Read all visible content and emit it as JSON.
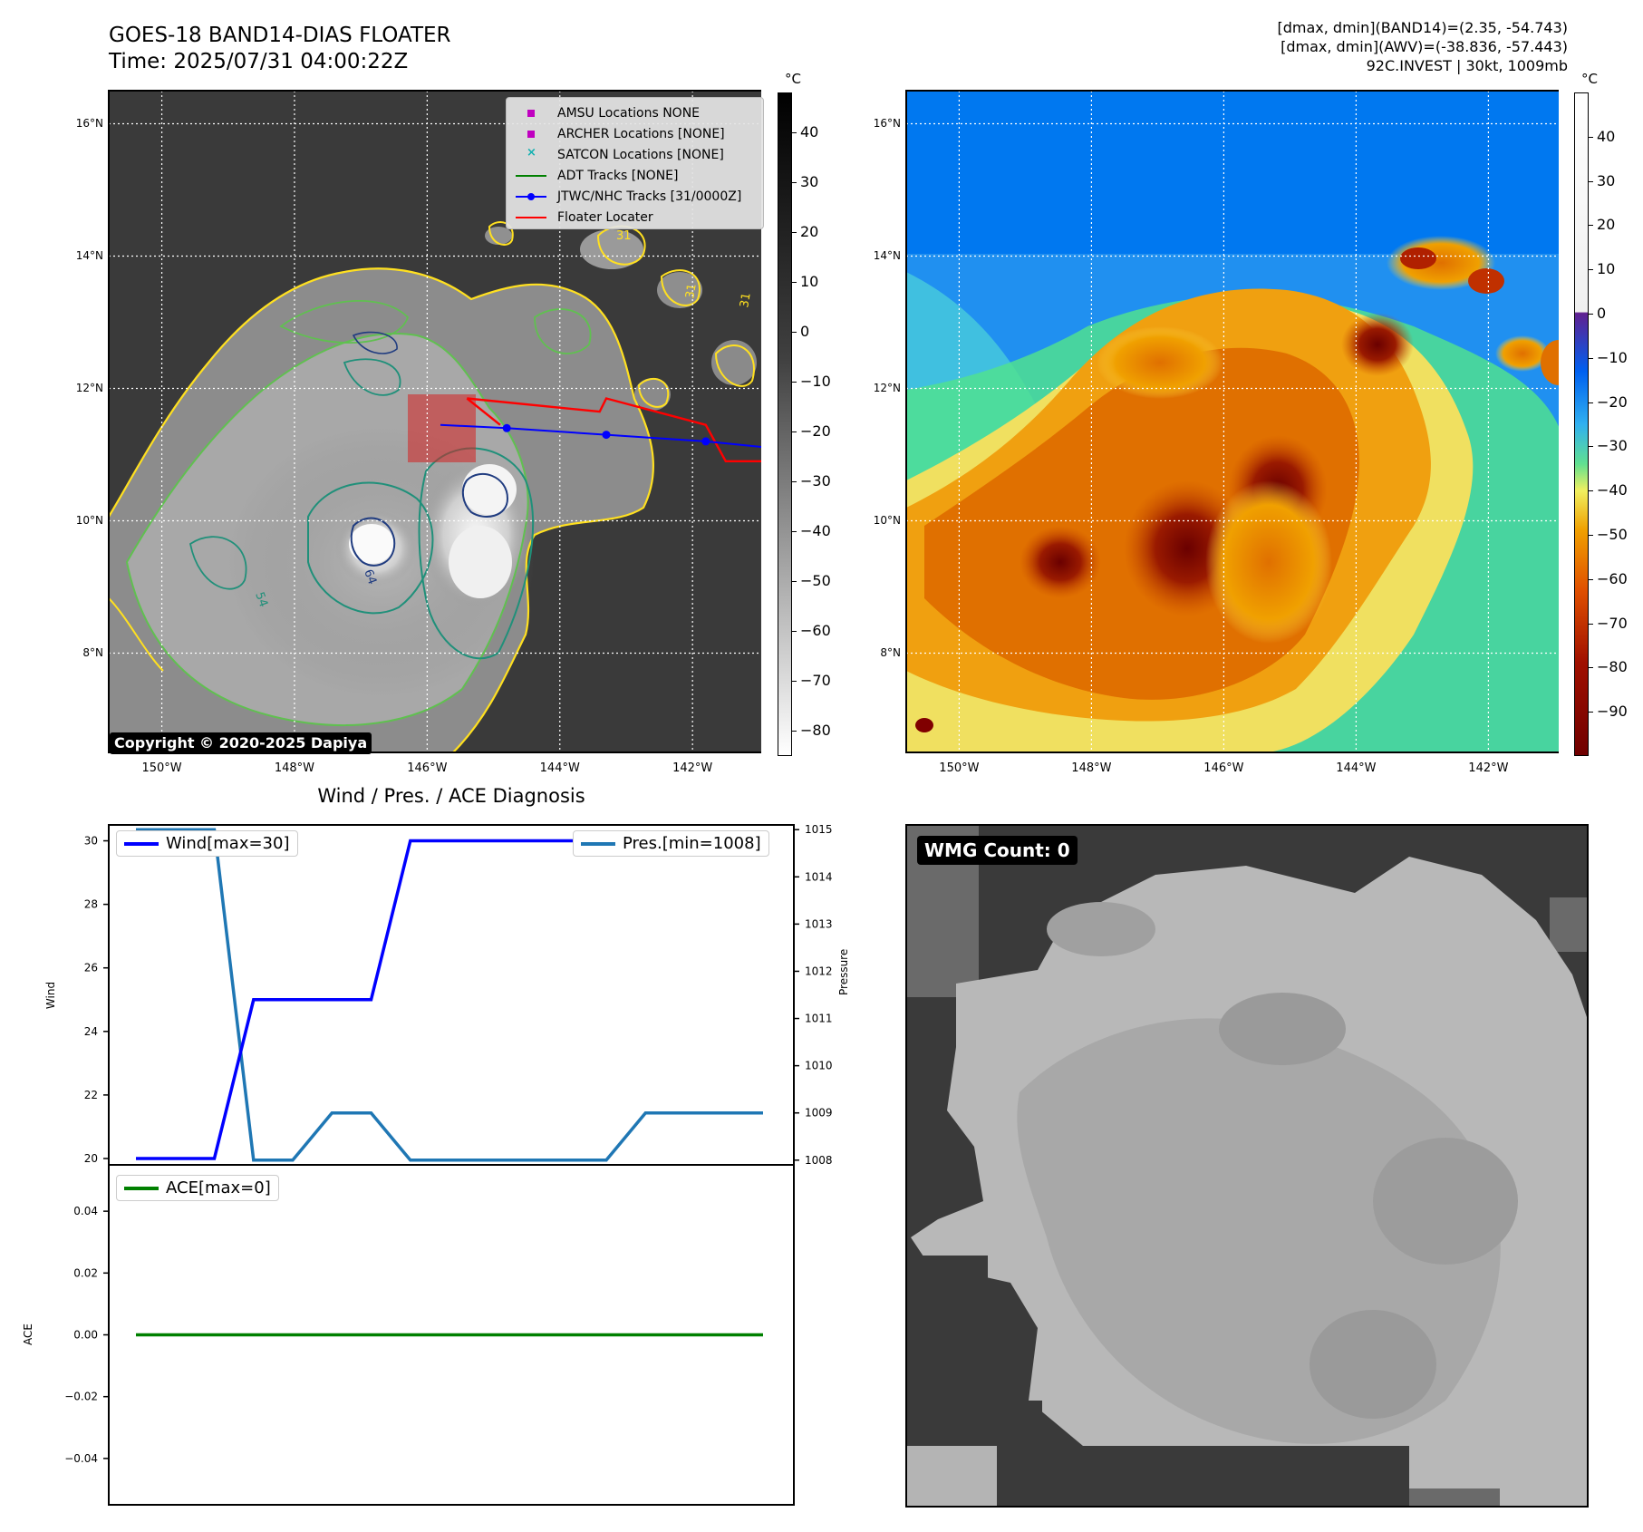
{
  "header": {
    "title_line1": "GOES-18 BAND14-DIAS FLOATER",
    "title_line2": "Time: 2025/07/31 04:00:22Z",
    "info_line1": "[dmax, dmin](BAND14)=(2.35, -54.743)",
    "info_line2": "[dmax, dmin](AWV)=(-38.836, -57.443)",
    "info_line3": "92C.INVEST | 30kt, 1009mb"
  },
  "map": {
    "lon_ticks": [
      "150°W",
      "148°W",
      "146°W",
      "144°W",
      "142°W"
    ],
    "lat_ticks": [
      "16°N",
      "14°N",
      "12°N",
      "10°N",
      "8°N"
    ],
    "copyright": "Copyright © 2020-2025 Dapiya",
    "legend": [
      {
        "label": "AMSU Locations NONE",
        "marker": "square",
        "color": "#c000c0"
      },
      {
        "label": "ARCHER Locations [NONE]",
        "marker": "square",
        "color": "#c000c0"
      },
      {
        "label": "SATCON Locations [NONE]",
        "marker": "x",
        "color": "#10b0b0"
      },
      {
        "label": "ADT Tracks [NONE]",
        "marker": "line",
        "color": "#008000"
      },
      {
        "label": "JTWC/NHC Tracks [31/0000Z]",
        "marker": "line-dot",
        "color": "#0000ff"
      },
      {
        "label": "Floater Locater",
        "marker": "line",
        "color": "#ff0000"
      }
    ],
    "jtwc_track": [
      [
        -145.8,
        11.45
      ],
      [
        -144.8,
        11.4
      ],
      [
        -143.3,
        11.3
      ],
      [
        -141.8,
        11.2
      ],
      [
        -140.8,
        11.1
      ]
    ],
    "floater_box": [
      [
        -145.4,
        11.85
      ],
      [
        -143.4,
        11.65
      ],
      [
        -143.3,
        11.85
      ],
      [
        -141.8,
        11.45
      ],
      [
        -141.5,
        10.9
      ],
      [
        -140.8,
        10.9
      ]
    ],
    "floater_inner": [
      [
        -145.4,
        11.85
      ],
      [
        -144.9,
        11.45
      ]
    ],
    "contour_labels": [
      "31",
      "31",
      "64",
      "54",
      "31"
    ],
    "colors": {
      "track": "#0000ff",
      "floater": "#ff0000",
      "contour_yellow": "#ffe020",
      "contour_green": "#60c050",
      "contour_teal": "#20907a",
      "contour_navy": "#203c80"
    }
  },
  "colorbars": {
    "unit": "°C",
    "ir_ticks": [
      "40",
      "30",
      "20",
      "10",
      "0",
      "−10",
      "−20",
      "−30",
      "−40",
      "−50",
      "−60",
      "−70",
      "−80"
    ],
    "awv_ticks": [
      "40",
      "30",
      "20",
      "10",
      "0",
      "−10",
      "−20",
      "−30",
      "−40",
      "−50",
      "−60",
      "−70",
      "−80",
      "−90"
    ]
  },
  "diagnosis": {
    "title": "Wind / Pres. / ACE Diagnosis",
    "wind_label": "Wind",
    "pressure_label": "Pressure",
    "ace_label": "ACE",
    "wind_legend": "Wind[max=30]",
    "pres_legend": "Pres.[min=1008]",
    "ace_legend": "ACE[max=0]",
    "wind_ticks": [
      "30",
      "28",
      "26",
      "24",
      "22",
      "20"
    ],
    "pres_ticks": [
      "1015",
      "1014",
      "1013",
      "1012",
      "1011",
      "1010",
      "1009",
      "1008"
    ],
    "ace_ticks": [
      "0.04",
      "0.02",
      "0.00",
      "−0.02",
      "−0.04"
    ]
  },
  "chart_data": {
    "type": "line",
    "x": [
      0,
      1,
      2,
      3,
      4,
      5,
      6,
      7,
      8,
      9,
      10,
      11,
      12,
      13,
      14,
      15,
      16
    ],
    "series": [
      {
        "name": "Wind[max=30]",
        "axis": "left",
        "color": "#0000ff",
        "values": [
          20,
          20,
          20,
          25,
          25,
          25,
          25,
          30,
          30,
          30,
          30,
          30,
          30,
          30,
          30,
          30,
          30
        ]
      },
      {
        "name": "Pres.[min=1008]",
        "axis": "right",
        "color": "#1f77b4",
        "values": [
          1015,
          1015,
          1015,
          1008,
          1008,
          1009,
          1009,
          1008,
          1008,
          1008,
          1008,
          1008,
          1008,
          1009,
          1009,
          1009,
          1009
        ]
      },
      {
        "name": "ACE[max=0]",
        "axis": "ace",
        "color": "#008000",
        "values": [
          0,
          0,
          0,
          0,
          0,
          0,
          0,
          0,
          0,
          0,
          0,
          0,
          0,
          0,
          0,
          0,
          0
        ]
      }
    ],
    "ylim_wind": [
      19.8,
      30.5
    ],
    "ylim_pressure": [
      1007.9,
      1015.1
    ],
    "ylim_ace": [
      -0.055,
      0.055
    ],
    "title": "Wind / Pres. / ACE Diagnosis",
    "xlabel": "",
    "ylabel": "Wind"
  },
  "wmg": {
    "label": "WMG Count: 0"
  }
}
